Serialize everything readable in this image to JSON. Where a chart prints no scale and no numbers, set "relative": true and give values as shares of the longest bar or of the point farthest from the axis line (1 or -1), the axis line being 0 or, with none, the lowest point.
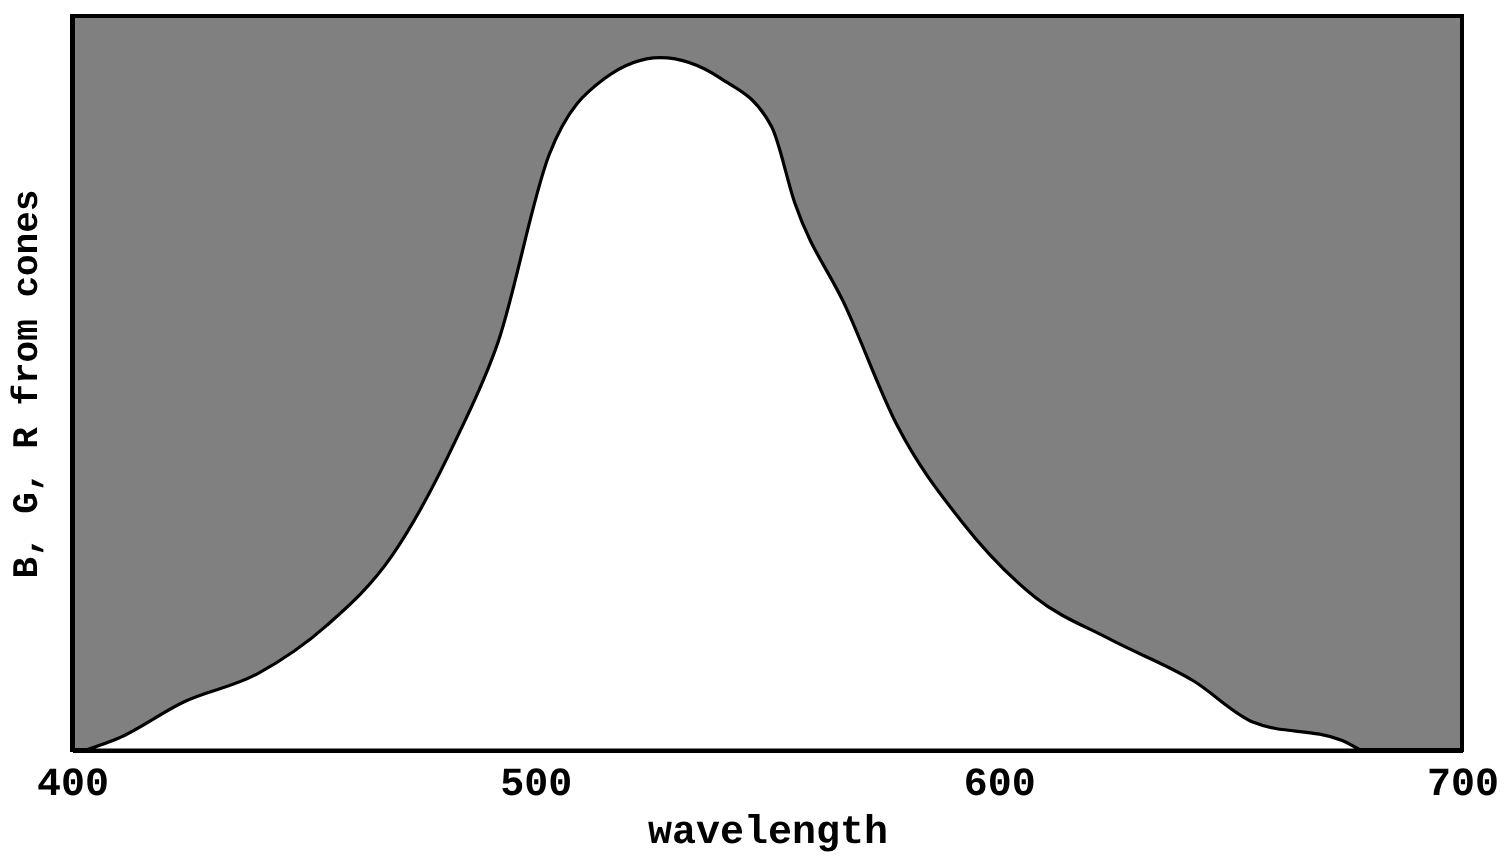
{
  "chart_data": {
    "type": "area",
    "xlabel": "wavelength",
    "ylabel": "B, G, R from cones",
    "relative": true,
    "x": [
      403,
      410,
      424,
      440,
      455,
      469,
      483,
      492,
      503,
      515,
      527,
      540,
      551,
      556,
      567,
      578,
      592,
      608,
      624,
      642,
      655,
      674,
      678
    ],
    "series": [
      {
        "color": "#ffffff",
        "values": [
          0,
          0.017,
          0.069,
          0.11,
          0.18,
          0.28,
          0.45,
          0.59,
          0.86,
          0.97,
          1,
          0.97,
          0.9,
          0.79,
          0.64,
          0.47,
          0.33,
          0.22,
          0.16,
          0.1,
          0.04,
          0.014,
          0
        ]
      }
    ],
    "xlim": [
      400,
      700
    ],
    "xticks": [
      400,
      500,
      600,
      700
    ]
  }
}
